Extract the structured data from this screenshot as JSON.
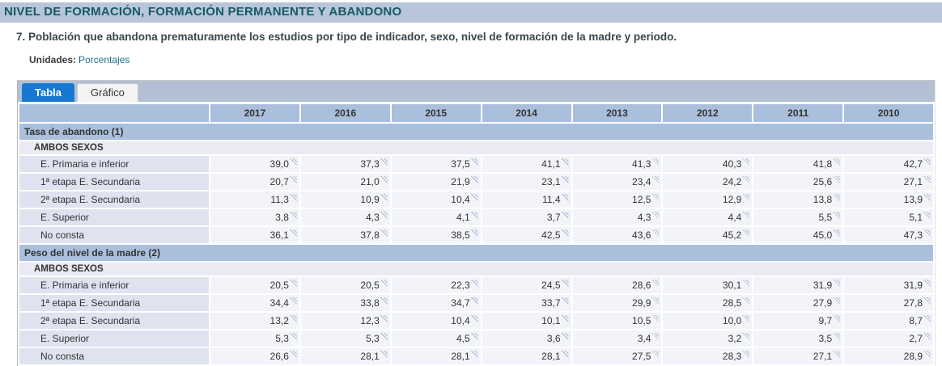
{
  "page": {
    "title": "NIVEL DE FORMACIÓN, FORMACIÓN PERMANENTE Y ABANDONO",
    "subtitle": "7. Población que abandona prematuramente los estudios por tipo de indicador, sexo, nivel de formación de la madre y periodo.",
    "units_label": "Unidades:",
    "units_value": "Porcentajes"
  },
  "tabs": [
    {
      "label": "Tabla",
      "active": true
    },
    {
      "label": "Gráfico",
      "active": false
    }
  ],
  "table": {
    "years": [
      "2017",
      "2016",
      "2015",
      "2014",
      "2013",
      "2012",
      "2011",
      "2010"
    ],
    "sections": [
      {
        "title": "Tasa de abandono (1)",
        "group": "AMBOS SEXOS",
        "rows": [
          {
            "label": "E. Primaria e inferior",
            "values": [
              "39,0",
              "37,3",
              "37,5",
              "41,1",
              "41,3",
              "40,3",
              "41,8",
              "42,7"
            ]
          },
          {
            "label": "1ª etapa E. Secundaria",
            "values": [
              "20,7",
              "21,0",
              "21,9",
              "23,1",
              "23,4",
              "24,2",
              "25,6",
              "27,1"
            ]
          },
          {
            "label": "2ª etapa E. Secundaria",
            "values": [
              "11,3",
              "10,9",
              "10,4",
              "11,4",
              "12,5",
              "12,9",
              "13,8",
              "13,9"
            ]
          },
          {
            "label": "E. Superior",
            "values": [
              "3,8",
              "4,3",
              "4,1",
              "3,7",
              "4,3",
              "4,4",
              "5,5",
              "5,1"
            ]
          },
          {
            "label": "No consta",
            "values": [
              "36,1",
              "37,8",
              "38,5",
              "42,5",
              "43,6",
              "45,2",
              "45,0",
              "47,3"
            ]
          }
        ]
      },
      {
        "title": "Peso del nivel de la madre (2)",
        "group": "AMBOS SEXOS",
        "rows": [
          {
            "label": "E. Primaria e inferior",
            "values": [
              "20,5",
              "20,5",
              "22,3",
              "24,5",
              "28,6",
              "30,1",
              "31,9",
              "31,9"
            ]
          },
          {
            "label": "1ª etapa E. Secundaria",
            "values": [
              "34,4",
              "33,8",
              "34,7",
              "33,7",
              "29,9",
              "28,5",
              "27,9",
              "27,8"
            ]
          },
          {
            "label": "2ª etapa E. Secundaria",
            "values": [
              "13,2",
              "12,3",
              "10,4",
              "10,1",
              "10,5",
              "10,0",
              "9,7",
              "8,7"
            ]
          },
          {
            "label": "E. Superior",
            "values": [
              "5,3",
              "5,3",
              "4,5",
              "3,6",
              "3,4",
              "3,2",
              "3,5",
              "2,7"
            ]
          },
          {
            "label": "No consta",
            "values": [
              "26,6",
              "28,1",
              "28,1",
              "28,1",
              "27,5",
              "28,3",
              "27,1",
              "28,9"
            ]
          }
        ]
      }
    ]
  },
  "icons": {
    "value_note": "corner-note-icon (small striped triangle marking a footnote/tooltip on each value)"
  },
  "colors": {
    "accent_tab_blue": "#1778d2",
    "header_bar_bg": "#b8c5da",
    "title_text": "#155b62",
    "tabstrip_bg": "#b3c0d4",
    "table_header_bg": "#aabfdc",
    "group_row_bg": "#e9eaf3",
    "label_cell_bg": "#dfe2ef",
    "value_cell_bg": "#f3f4f9",
    "units_value_color": "#23718e"
  }
}
